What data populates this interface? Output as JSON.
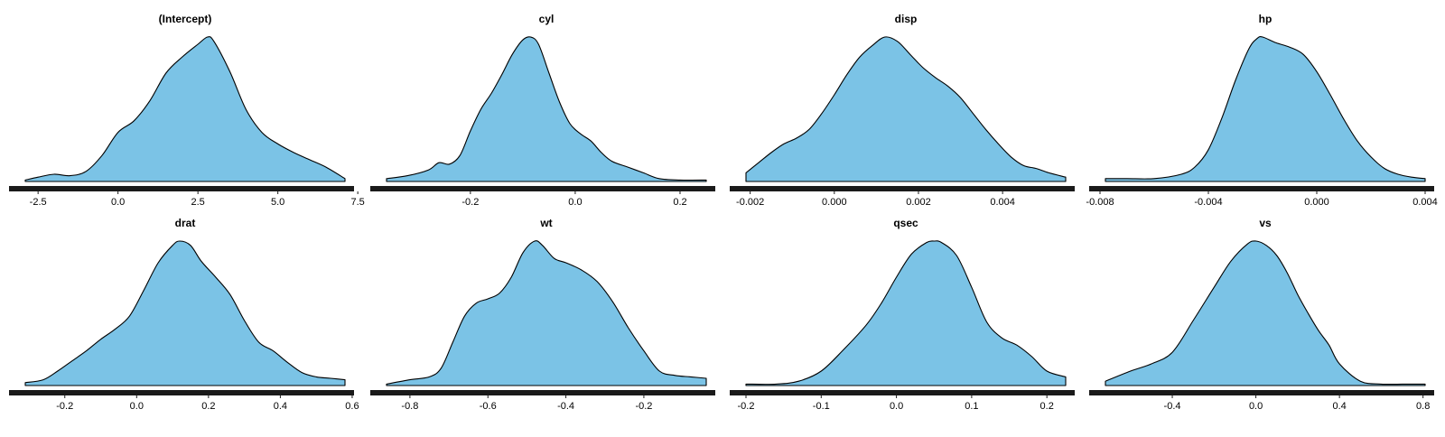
{
  "chart_data": [
    {
      "type": "area",
      "title": "(Intercept)",
      "xlim": [
        -2.9,
        7.1
      ],
      "ticks": [
        -2.5,
        0.0,
        2.5,
        5.0,
        7.5
      ],
      "tick_labels": [
        "-2.5",
        "0.0",
        "2.5",
        "5.0",
        "7.5"
      ],
      "x": [
        -2.9,
        -2.5,
        -2.0,
        -1.5,
        -1.0,
        -0.5,
        0.0,
        0.5,
        1.0,
        1.5,
        2.0,
        2.5,
        2.8,
        3.0,
        3.5,
        4.0,
        4.5,
        5.0,
        5.5,
        6.0,
        6.5,
        7.1
      ],
      "y": [
        0.01,
        0.03,
        0.05,
        0.04,
        0.07,
        0.18,
        0.34,
        0.42,
        0.56,
        0.75,
        0.86,
        0.95,
        1.0,
        0.97,
        0.76,
        0.5,
        0.34,
        0.26,
        0.2,
        0.15,
        0.1,
        0.02
      ]
    },
    {
      "type": "area",
      "title": "cyl",
      "xlim": [
        -0.36,
        0.25
      ],
      "ticks": [
        -0.2,
        0.0,
        0.2
      ],
      "tick_labels": [
        "-0.2",
        "0.0",
        "0.2"
      ],
      "x": [
        -0.36,
        -0.32,
        -0.28,
        -0.26,
        -0.24,
        -0.22,
        -0.2,
        -0.18,
        -0.16,
        -0.14,
        -0.12,
        -0.1,
        -0.085,
        -0.07,
        -0.05,
        -0.03,
        -0.01,
        0.01,
        0.03,
        0.05,
        0.07,
        0.1,
        0.13,
        0.16,
        0.2,
        0.25
      ],
      "y": [
        0.02,
        0.04,
        0.08,
        0.13,
        0.12,
        0.18,
        0.35,
        0.5,
        0.61,
        0.74,
        0.88,
        0.98,
        1.0,
        0.95,
        0.75,
        0.55,
        0.4,
        0.33,
        0.28,
        0.2,
        0.14,
        0.1,
        0.06,
        0.02,
        0.01,
        0.01
      ]
    },
    {
      "type": "area",
      "title": "disp",
      "xlim": [
        -0.0021,
        0.0055
      ],
      "ticks": [
        -0.002,
        0.0,
        0.002,
        0.004
      ],
      "tick_labels": [
        "-0.002",
        "0.000",
        "0.002",
        "0.004"
      ],
      "x": [
        -0.0021,
        -0.0018,
        -0.0015,
        -0.0012,
        -0.0009,
        -0.0006,
        -0.0003,
        0.0,
        0.0003,
        0.0006,
        0.0009,
        0.0012,
        0.0015,
        0.0018,
        0.0021,
        0.0024,
        0.0027,
        0.003,
        0.0033,
        0.0036,
        0.0039,
        0.0042,
        0.0045,
        0.0048,
        0.0051,
        0.0055
      ],
      "y": [
        0.06,
        0.13,
        0.2,
        0.26,
        0.3,
        0.36,
        0.47,
        0.6,
        0.74,
        0.86,
        0.94,
        1.0,
        0.97,
        0.88,
        0.79,
        0.72,
        0.66,
        0.58,
        0.47,
        0.36,
        0.26,
        0.17,
        0.11,
        0.09,
        0.06,
        0.03
      ]
    },
    {
      "type": "area",
      "title": "hp",
      "xlim": [
        -0.0078,
        0.004
      ],
      "ticks": [
        -0.008,
        -0.004,
        0.0,
        0.004
      ],
      "tick_labels": [
        "-0.008",
        "-0.004",
        "0.000",
        "0.004"
      ],
      "x": [
        -0.0078,
        -0.007,
        -0.006,
        -0.005,
        -0.0045,
        -0.004,
        -0.0035,
        -0.003,
        -0.0025,
        -0.0022,
        -0.002,
        -0.0015,
        -0.001,
        -0.0005,
        0.0,
        0.0005,
        0.001,
        0.0015,
        0.002,
        0.0025,
        0.003,
        0.0035,
        0.004
      ],
      "y": [
        0.02,
        0.02,
        0.02,
        0.05,
        0.1,
        0.22,
        0.44,
        0.7,
        0.92,
        0.99,
        1.0,
        0.96,
        0.93,
        0.88,
        0.76,
        0.6,
        0.43,
        0.28,
        0.17,
        0.09,
        0.05,
        0.03,
        0.02
      ]
    },
    {
      "type": "area",
      "title": "drat",
      "xlim": [
        -0.31,
        0.58
      ],
      "ticks": [
        -0.2,
        0.0,
        0.2,
        0.4,
        0.6
      ],
      "tick_labels": [
        "-0.2",
        "0.0",
        "0.2",
        "0.4",
        "0.6"
      ],
      "x": [
        -0.31,
        -0.26,
        -0.22,
        -0.18,
        -0.14,
        -0.1,
        -0.06,
        -0.02,
        0.02,
        0.06,
        0.1,
        0.12,
        0.15,
        0.18,
        0.22,
        0.26,
        0.3,
        0.34,
        0.38,
        0.42,
        0.46,
        0.5,
        0.54,
        0.58
      ],
      "y": [
        0.02,
        0.04,
        0.1,
        0.17,
        0.24,
        0.32,
        0.39,
        0.48,
        0.66,
        0.85,
        0.97,
        1.0,
        0.97,
        0.86,
        0.75,
        0.63,
        0.45,
        0.3,
        0.24,
        0.16,
        0.09,
        0.06,
        0.05,
        0.04
      ]
    },
    {
      "type": "area",
      "title": "wt",
      "xlim": [
        -0.86,
        -0.04
      ],
      "ticks": [
        -0.8,
        -0.6,
        -0.4,
        -0.2
      ],
      "tick_labels": [
        "-0.8",
        "-0.6",
        "-0.4",
        "-0.2"
      ],
      "x": [
        -0.86,
        -0.8,
        -0.75,
        -0.72,
        -0.69,
        -0.66,
        -0.63,
        -0.6,
        -0.57,
        -0.54,
        -0.51,
        -0.48,
        -0.46,
        -0.43,
        -0.4,
        -0.36,
        -0.32,
        -0.28,
        -0.24,
        -0.2,
        -0.16,
        -0.12,
        -0.08,
        -0.04
      ],
      "y": [
        0.01,
        0.04,
        0.06,
        0.12,
        0.3,
        0.48,
        0.57,
        0.6,
        0.64,
        0.75,
        0.92,
        1.0,
        0.97,
        0.88,
        0.85,
        0.8,
        0.72,
        0.58,
        0.4,
        0.24,
        0.1,
        0.07,
        0.06,
        0.05
      ]
    },
    {
      "type": "area",
      "title": "qsec",
      "xlim": [
        -0.2,
        0.225
      ],
      "ticks": [
        -0.2,
        -0.1,
        0.0,
        0.1,
        0.2
      ],
      "tick_labels": [
        "-0.2",
        "-0.1",
        "0.0",
        "0.1",
        "0.2"
      ],
      "x": [
        -0.2,
        -0.16,
        -0.13,
        -0.1,
        -0.07,
        -0.04,
        -0.02,
        0.0,
        0.02,
        0.04,
        0.05,
        0.06,
        0.08,
        0.1,
        0.12,
        0.14,
        0.16,
        0.18,
        0.2,
        0.225
      ],
      "y": [
        0.01,
        0.01,
        0.03,
        0.1,
        0.25,
        0.42,
        0.57,
        0.75,
        0.91,
        0.99,
        1.0,
        0.99,
        0.9,
        0.68,
        0.44,
        0.33,
        0.28,
        0.2,
        0.1,
        0.06
      ]
    },
    {
      "type": "area",
      "title": "vs",
      "xlim": [
        -0.72,
        0.81
      ],
      "ticks": [
        -0.4,
        0.0,
        0.4,
        0.8
      ],
      "tick_labels": [
        "-0.4",
        "0.0",
        "0.4",
        "0.8"
      ],
      "x": [
        -0.72,
        -0.6,
        -0.5,
        -0.4,
        -0.3,
        -0.2,
        -0.12,
        -0.04,
        0.0,
        0.05,
        0.1,
        0.15,
        0.2,
        0.25,
        0.3,
        0.35,
        0.4,
        0.5,
        0.6,
        0.7,
        0.81
      ],
      "y": [
        0.03,
        0.1,
        0.15,
        0.23,
        0.45,
        0.68,
        0.86,
        0.98,
        1.0,
        0.97,
        0.9,
        0.78,
        0.63,
        0.5,
        0.38,
        0.28,
        0.15,
        0.03,
        0.01,
        0.01,
        0.01
      ]
    }
  ]
}
